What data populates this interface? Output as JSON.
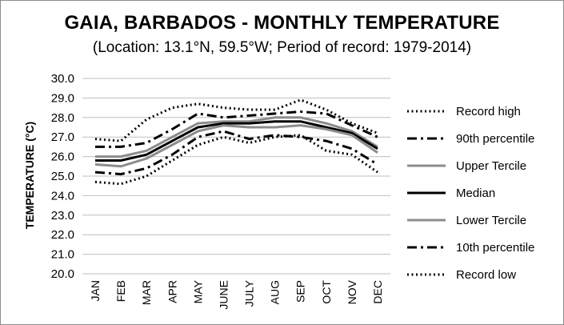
{
  "chart_data": {
    "type": "line",
    "title": "GAIA, BARBADOS - MONTHLY TEMPERATURE",
    "subtitle": "(Location: 13.1°N, 59.5°W; Period of record: 1979-2014)",
    "ylabel": "TEMPERATURE (°C)",
    "ylim": [
      20.0,
      30.0
    ],
    "ytick_labels": [
      "20.0",
      "21.0",
      "22.0",
      "23.0",
      "24.0",
      "25.0",
      "26.0",
      "27.0",
      "28.0",
      "29.0",
      "30.0"
    ],
    "categories": [
      "JAN",
      "FEB",
      "MAR",
      "APR",
      "MAY",
      "JUNE",
      "JULY",
      "AUG",
      "SEP",
      "OCT",
      "NOV",
      "DEC"
    ],
    "grid": true,
    "legend_position": "right",
    "series": [
      {
        "name": "Record high",
        "style": "dotted",
        "color": "#000000",
        "values": [
          26.9,
          26.8,
          27.9,
          28.5,
          28.7,
          28.5,
          28.4,
          28.4,
          28.9,
          28.4,
          27.7,
          27.2
        ]
      },
      {
        "name": "90th percentile",
        "style": "dashdot",
        "color": "#000000",
        "values": [
          26.5,
          26.5,
          26.7,
          27.4,
          28.2,
          28.0,
          28.1,
          28.2,
          28.3,
          28.2,
          27.6,
          27.0
        ]
      },
      {
        "name": "Upper Tercile",
        "style": "solid",
        "color": "#8c8c8c",
        "values": [
          26.0,
          26.0,
          26.3,
          27.0,
          27.7,
          27.8,
          27.8,
          28.0,
          28.0,
          27.7,
          27.3,
          26.5
        ]
      },
      {
        "name": "Median",
        "style": "solid",
        "color": "#000000",
        "values": [
          25.8,
          25.8,
          26.1,
          26.8,
          27.5,
          27.7,
          27.7,
          27.8,
          27.8,
          27.5,
          27.2,
          26.4
        ]
      },
      {
        "name": "Lower Tercile",
        "style": "solid",
        "color": "#8c8c8c",
        "values": [
          25.6,
          25.5,
          25.9,
          26.6,
          27.3,
          27.6,
          27.5,
          27.5,
          27.6,
          27.4,
          27.1,
          26.2
        ]
      },
      {
        "name": "10th percentile",
        "style": "dashdot",
        "color": "#000000",
        "values": [
          25.2,
          25.1,
          25.4,
          26.1,
          27.0,
          27.3,
          26.9,
          27.1,
          27.0,
          26.8,
          26.4,
          25.6
        ]
      },
      {
        "name": "Record low",
        "style": "dotted",
        "color": "#000000",
        "values": [
          24.7,
          24.6,
          25.0,
          25.8,
          26.6,
          27.0,
          26.7,
          27.0,
          27.1,
          26.3,
          26.1,
          25.2
        ]
      }
    ]
  }
}
